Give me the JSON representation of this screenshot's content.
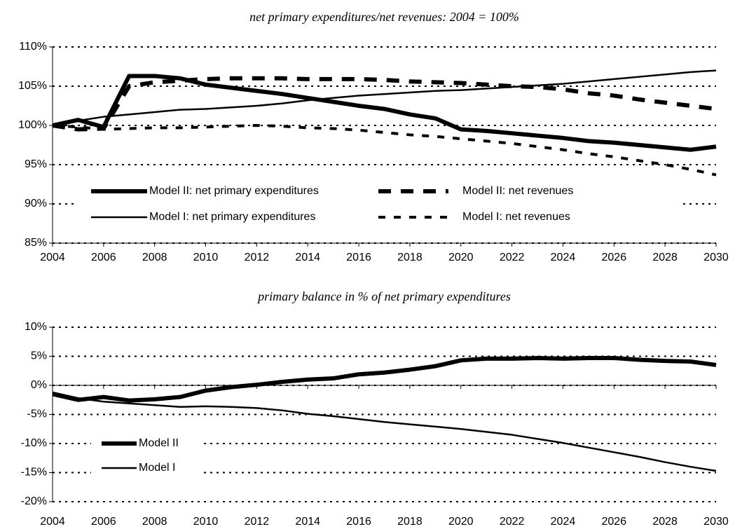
{
  "chart_data": [
    {
      "type": "line",
      "title": "net primary expenditures/net revenues: 2004 = 100%",
      "x": [
        2004,
        2005,
        2006,
        2007,
        2008,
        2009,
        2010,
        2011,
        2012,
        2013,
        2014,
        2015,
        2016,
        2017,
        2018,
        2019,
        2020,
        2021,
        2022,
        2023,
        2024,
        2025,
        2026,
        2027,
        2028,
        2029,
        2030
      ],
      "xlim": [
        2004,
        2030
      ],
      "xticks": [
        2004,
        2006,
        2008,
        2010,
        2012,
        2014,
        2016,
        2018,
        2020,
        2022,
        2024,
        2026,
        2028,
        2030
      ],
      "ylim": [
        85,
        110
      ],
      "yticks": [
        {
          "value": 85,
          "label": "85%"
        },
        {
          "value": 90,
          "label": "90%"
        },
        {
          "value": 95,
          "label": "95%"
        },
        {
          "value": 100,
          "label": "100%"
        },
        {
          "value": 105,
          "label": "105%"
        },
        {
          "value": 110,
          "label": "110%"
        }
      ],
      "grid": true,
      "legend": "lower center",
      "legend_columns": 2,
      "series": [
        {
          "name": "Model II: net primary expenditures",
          "color": "#000000",
          "width": 6,
          "dashed": false,
          "values": [
            100,
            100.7,
            99.8,
            106.3,
            106.3,
            106.0,
            105.2,
            104.8,
            104.4,
            104.0,
            103.5,
            103.0,
            102.5,
            102.1,
            101.4,
            100.9,
            99.5,
            99.3,
            99.0,
            98.7,
            98.4,
            98.0,
            97.8,
            97.5,
            97.2,
            96.9,
            97.3
          ]
        },
        {
          "name": "Model II: net revenues",
          "color": "#000000",
          "width": 6,
          "dashed": true,
          "values": [
            100,
            99.5,
            99.6,
            105.0,
            105.5,
            105.7,
            105.9,
            106.0,
            106.0,
            106.0,
            105.9,
            105.9,
            105.9,
            105.8,
            105.6,
            105.5,
            105.4,
            105.2,
            105.0,
            104.9,
            104.6,
            104.1,
            103.8,
            103.3,
            102.9,
            102.5,
            102.1
          ]
        },
        {
          "name": "Model I: net primary expenditures",
          "color": "#000000",
          "width": 2.5,
          "dashed": false,
          "values": [
            100,
            100.6,
            101.1,
            101.4,
            101.7,
            102.0,
            102.1,
            102.3,
            102.5,
            102.8,
            103.2,
            103.5,
            103.8,
            104.0,
            104.2,
            104.4,
            104.5,
            104.7,
            104.9,
            105.1,
            105.3,
            105.6,
            105.9,
            106.2,
            106.5,
            106.8,
            107.0
          ]
        },
        {
          "name": "Model I: net revenues",
          "color": "#000000",
          "width": 4,
          "dashed": true,
          "values": [
            100,
            99.8,
            99.5,
            99.6,
            99.7,
            99.7,
            99.8,
            99.9,
            100.0,
            99.9,
            99.7,
            99.6,
            99.4,
            99.1,
            98.8,
            98.6,
            98.3,
            98.0,
            97.7,
            97.3,
            96.9,
            96.4,
            96.0,
            95.5,
            95.0,
            94.4,
            93.7
          ]
        }
      ]
    },
    {
      "type": "line",
      "title": "primary balance in % of net primary expenditures",
      "x": [
        2004,
        2005,
        2006,
        2007,
        2008,
        2009,
        2010,
        2011,
        2012,
        2013,
        2014,
        2015,
        2016,
        2017,
        2018,
        2019,
        2020,
        2021,
        2022,
        2023,
        2024,
        2025,
        2026,
        2027,
        2028,
        2029,
        2030
      ],
      "xlim": [
        2004,
        2030
      ],
      "xticks": [
        2004,
        2006,
        2008,
        2010,
        2012,
        2014,
        2016,
        2018,
        2020,
        2022,
        2024,
        2026,
        2028,
        2030
      ],
      "ylim": [
        -20,
        10
      ],
      "yticks": [
        {
          "value": -20,
          "label": "-20%"
        },
        {
          "value": -15,
          "label": "-15%"
        },
        {
          "value": -10,
          "label": "-10%"
        },
        {
          "value": -5,
          "label": "-5%"
        },
        {
          "value": 0,
          "label": "0%"
        },
        {
          "value": 5,
          "label": "5%"
        },
        {
          "value": 10,
          "label": "10%"
        }
      ],
      "grid": true,
      "legend": "lower left",
      "legend_columns": 1,
      "series": [
        {
          "name": "Model II",
          "color": "#000000",
          "width": 6,
          "dashed": false,
          "values": [
            -1.5,
            -2.5,
            -2.0,
            -2.6,
            -2.4,
            -2.0,
            -0.9,
            -0.3,
            0.1,
            0.6,
            1.0,
            1.2,
            1.9,
            2.2,
            2.7,
            3.3,
            4.3,
            4.6,
            4.6,
            4.7,
            4.6,
            4.7,
            4.7,
            4.4,
            4.2,
            4.1,
            3.5
          ]
        },
        {
          "name": "Model I",
          "color": "#000000",
          "width": 2.5,
          "dashed": false,
          "values": [
            -1.2,
            -2.2,
            -2.8,
            -3.1,
            -3.4,
            -3.7,
            -3.6,
            -3.7,
            -3.9,
            -4.3,
            -4.9,
            -5.3,
            -5.8,
            -6.3,
            -6.7,
            -7.1,
            -7.5,
            -8.0,
            -8.5,
            -9.2,
            -9.9,
            -10.7,
            -11.5,
            -12.3,
            -13.2,
            -14.0,
            -14.7
          ]
        }
      ]
    }
  ]
}
